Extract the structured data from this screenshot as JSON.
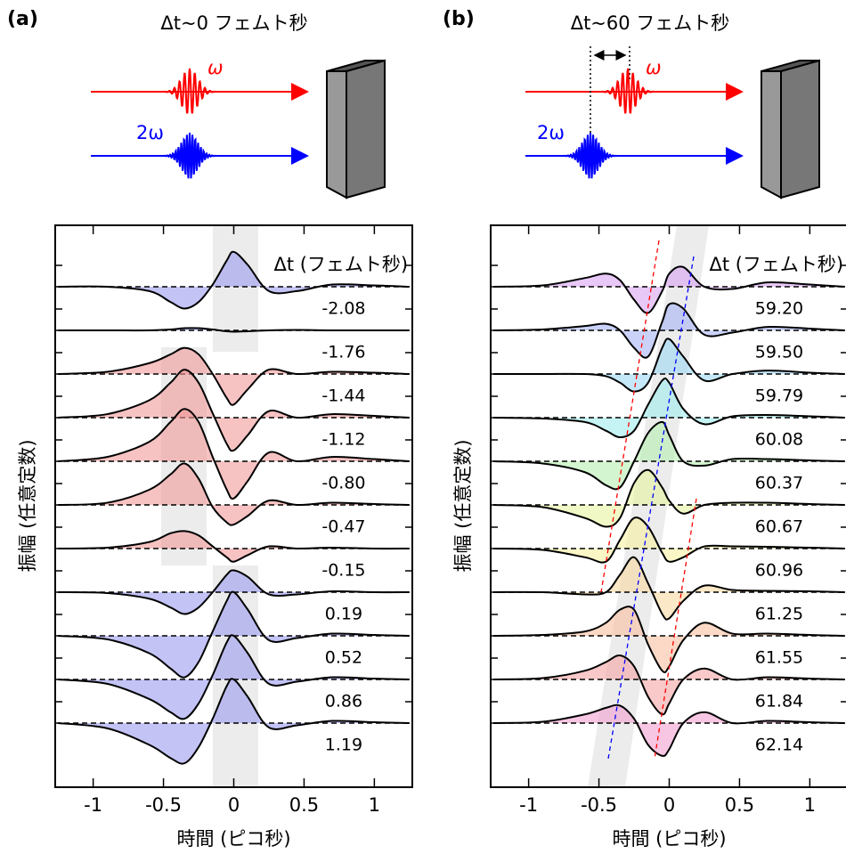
{
  "chart_data": [
    {
      "type": "line",
      "panel_label": "(a)",
      "title": "Δt~0 フェムト秒",
      "annotations": [
        "ω",
        "2ω"
      ],
      "x_label": "時間 (ピコ秒)",
      "y_label": "振幅 (任意定数)",
      "legend_title": "Δt (フェムト秒)",
      "xlim": [
        -1.27,
        1.27
      ],
      "xticks": [
        -1,
        -0.5,
        0,
        0.5,
        1
      ],
      "x": [
        -1.25,
        -0.9,
        -0.6,
        -0.45,
        -0.35,
        -0.25,
        -0.15,
        -0.05,
        0,
        0.1,
        0.25,
        0.45,
        0.7,
        1.0,
        1.25
      ],
      "series": [
        {
          "name": "-2.08",
          "color": "#9b9bf0",
          "values": [
            0,
            0,
            -0.1,
            -0.35,
            -0.5,
            -0.35,
            0.05,
            0.6,
            0.8,
            0.5,
            -0.1,
            -0.1,
            0.05,
            0.03,
            0
          ]
        },
        {
          "name": "-1.76",
          "color": "#9b9bf0",
          "values": [
            0,
            0,
            0,
            0.02,
            0.05,
            0.05,
            0.02,
            -0.02,
            -0.03,
            -0.02,
            0,
            0.01,
            0,
            0,
            0
          ]
        },
        {
          "name": "-1.44",
          "color": "#f29a9a",
          "values": [
            0,
            0.05,
            0.25,
            0.45,
            0.6,
            0.45,
            0,
            -0.55,
            -0.7,
            -0.35,
            0.1,
            0,
            0.05,
            0.03,
            0
          ]
        },
        {
          "name": "-1.12",
          "color": "#f29a9a",
          "values": [
            0,
            0.08,
            0.4,
            0.8,
            1.1,
            0.8,
            0.1,
            -0.6,
            -0.75,
            -0.4,
            0.15,
            0,
            0.08,
            0.04,
            0
          ]
        },
        {
          "name": "-0.80",
          "color": "#f29a9a",
          "values": [
            0,
            0.1,
            0.45,
            0.9,
            1.2,
            0.9,
            0.1,
            -0.65,
            -0.85,
            -0.45,
            0.2,
            0,
            0.1,
            0.05,
            0
          ]
        },
        {
          "name": "-0.47",
          "color": "#f29a9a",
          "values": [
            0,
            0.05,
            0.35,
            0.7,
            0.95,
            0.6,
            -0.05,
            -0.4,
            -0.45,
            -0.25,
            0.1,
            0,
            0.05,
            0.02,
            0
          ]
        },
        {
          "name": "-0.15",
          "color": "#f29a9a",
          "values": [
            0,
            0.02,
            0.15,
            0.35,
            0.4,
            0.3,
            0.05,
            -0.2,
            -0.3,
            -0.15,
            0.05,
            0,
            0.02,
            0,
            0
          ]
        },
        {
          "name": "0.19",
          "color": "#9b9bf0",
          "values": [
            0,
            -0.02,
            -0.15,
            -0.35,
            -0.5,
            -0.35,
            0,
            0.4,
            0.5,
            0.35,
            -0.05,
            -0.05,
            0.02,
            0,
            0
          ]
        },
        {
          "name": "0.52",
          "color": "#9b9bf0",
          "values": [
            0,
            -0.08,
            -0.4,
            -0.75,
            -0.95,
            -0.6,
            0.1,
            0.8,
            1.0,
            0.6,
            -0.1,
            -0.05,
            0.05,
            0.02,
            0
          ]
        },
        {
          "name": "0.86",
          "color": "#9b9bf0",
          "values": [
            0,
            -0.1,
            -0.45,
            -0.75,
            -0.9,
            -0.55,
            0.1,
            0.85,
            1.0,
            0.6,
            -0.1,
            -0.05,
            0.05,
            0.02,
            0
          ]
        },
        {
          "name": "1.19",
          "color": "#9b9bf0",
          "values": [
            0,
            -0.12,
            -0.5,
            -0.8,
            -0.92,
            -0.55,
            0.1,
            0.85,
            1.0,
            0.6,
            -0.1,
            -0.05,
            0.05,
            0.02,
            0
          ]
        }
      ]
    },
    {
      "type": "line",
      "panel_label": "(b)",
      "title": "Δt~60 フェムト秒",
      "annotations": [
        "ω",
        "2ω"
      ],
      "x_label": "時間 (ピコ秒)",
      "y_label": "振幅 (任意定数)",
      "legend_title": "Δt (フェムト秒)",
      "xlim": [
        -1.27,
        1.27
      ],
      "xticks": [
        -1,
        -0.5,
        0,
        0.5,
        1
      ],
      "x": [
        -1.25,
        -0.9,
        -0.6,
        -0.45,
        -0.35,
        -0.25,
        -0.15,
        -0.05,
        0,
        0.1,
        0.25,
        0.45,
        0.7,
        1.0,
        1.25
      ],
      "series": [
        {
          "name": "59.20",
          "color": "#d9a3f2",
          "values": [
            0,
            0.03,
            0.2,
            0.3,
            0.15,
            -0.3,
            -0.6,
            -0.1,
            0.3,
            0.45,
            0,
            -0.05,
            0.1,
            0.05,
            0
          ]
        },
        {
          "name": "59.50",
          "color": "#a8b4f5",
          "values": [
            0,
            0.02,
            0.1,
            0.15,
            0,
            -0.4,
            -0.6,
            0.2,
            0.6,
            0.5,
            -0.1,
            -0.05,
            0.08,
            0.04,
            0
          ]
        },
        {
          "name": "59.79",
          "color": "#9fd8f5",
          "values": [
            0,
            0,
            0,
            -0.05,
            -0.2,
            -0.4,
            -0.2,
            0.6,
            0.8,
            0.4,
            -0.15,
            0,
            0.08,
            0.03,
            0
          ]
        },
        {
          "name": "60.08",
          "color": "#a0ecec",
          "values": [
            0,
            -0.02,
            -0.1,
            -0.3,
            -0.45,
            -0.3,
            0.3,
            0.85,
            0.8,
            0.2,
            -0.15,
            0.03,
            0.06,
            0.03,
            0
          ]
        },
        {
          "name": "60.37",
          "color": "#b5f0b0",
          "values": [
            0,
            -0.05,
            -0.25,
            -0.55,
            -0.6,
            0.0,
            0.65,
            0.9,
            0.6,
            0,
            -0.1,
            0.05,
            0.05,
            0.02,
            0
          ]
        },
        {
          "name": "60.67",
          "color": "#e6f5a0",
          "values": [
            0,
            -0.05,
            -0.3,
            -0.5,
            -0.3,
            0.5,
            0.8,
            0.4,
            0.1,
            -0.2,
            0,
            0.05,
            0.05,
            0.02,
            0
          ]
        },
        {
          "name": "60.96",
          "color": "#f7f0a0",
          "values": [
            0,
            -0.03,
            -0.2,
            -0.3,
            0.2,
            0.7,
            0.5,
            -0.1,
            -0.3,
            -0.2,
            0.05,
            0.05,
            0.04,
            0.02,
            0
          ]
        },
        {
          "name": "61.25",
          "color": "#f9d8a0",
          "values": [
            0,
            0,
            -0.05,
            0,
            0.4,
            0.8,
            0.2,
            -0.5,
            -0.6,
            -0.2,
            0.15,
            0.05,
            0.03,
            0.02,
            0
          ]
        },
        {
          "name": "61.55",
          "color": "#f9c0a0",
          "values": [
            0,
            0.02,
            0.1,
            0.3,
            0.6,
            0.6,
            -0.2,
            -0.8,
            -0.7,
            -0.1,
            0.3,
            0.05,
            0.05,
            0.02,
            0
          ]
        },
        {
          "name": "61.84",
          "color": "#f5a3a3",
          "values": [
            0,
            0.03,
            0.2,
            0.4,
            0.55,
            0.3,
            -0.4,
            -0.8,
            -0.55,
            0,
            0.25,
            0,
            0.05,
            0.02,
            0
          ]
        },
        {
          "name": "62.14",
          "color": "#f0a0d0",
          "values": [
            0,
            0.03,
            0.2,
            0.35,
            0.4,
            0.1,
            -0.5,
            -0.75,
            -0.6,
            0,
            0.25,
            0,
            0.05,
            0.02,
            0
          ]
        }
      ]
    }
  ]
}
